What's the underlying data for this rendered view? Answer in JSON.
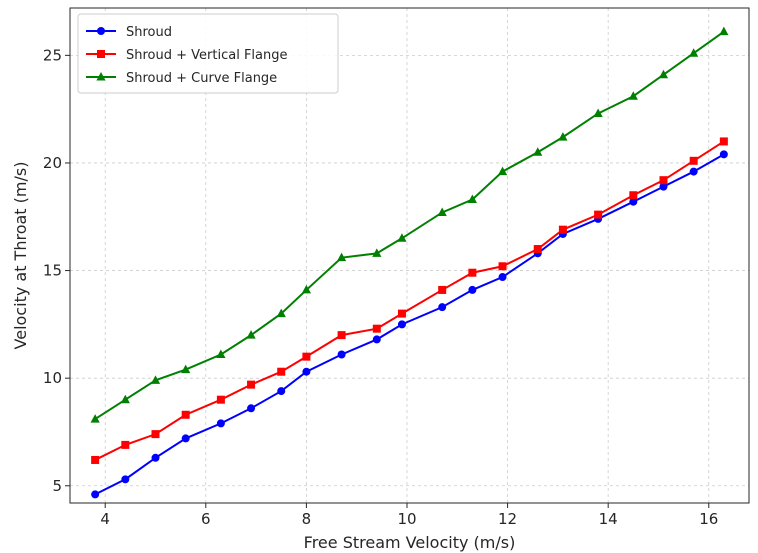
{
  "chart_data": {
    "type": "line",
    "xlabel": "Free Stream Velocity (m/s)",
    "ylabel": "Velocity at Throat (m/s)",
    "xlim": [
      3.3,
      16.8
    ],
    "ylim": [
      4.2,
      27.2
    ],
    "xticks": [
      4,
      6,
      8,
      10,
      12,
      14,
      16
    ],
    "yticks": [
      5,
      10,
      15,
      20,
      25
    ],
    "grid": true,
    "legend_position": "top-left",
    "x": [
      3.8,
      4.4,
      5.0,
      5.6,
      6.3,
      6.9,
      7.5,
      8.0,
      8.7,
      9.4,
      9.9,
      10.7,
      11.3,
      11.9,
      12.6,
      13.1,
      13.8,
      14.5,
      15.1,
      15.7,
      16.3
    ],
    "series": [
      {
        "name": "Shroud",
        "color": "#0000ff",
        "marker": "circle",
        "values": [
          4.6,
          5.3,
          6.3,
          7.2,
          7.9,
          8.6,
          9.4,
          10.3,
          11.1,
          11.8,
          12.5,
          13.3,
          14.1,
          14.7,
          15.8,
          16.7,
          17.4,
          18.2,
          18.9,
          19.6,
          20.4
        ]
      },
      {
        "name": "Shroud + Vertical Flange",
        "color": "#ff0000",
        "marker": "square",
        "values": [
          6.2,
          6.9,
          7.4,
          8.3,
          9.0,
          9.7,
          10.3,
          11.0,
          12.0,
          12.3,
          13.0,
          14.1,
          14.9,
          15.2,
          16.0,
          16.9,
          17.6,
          18.5,
          19.2,
          20.1,
          21.0
        ]
      },
      {
        "name": "Shroud + Curve Flange",
        "color": "#008000",
        "marker": "triangle",
        "values": [
          8.1,
          9.0,
          9.9,
          10.4,
          11.1,
          12.0,
          13.0,
          14.1,
          15.6,
          15.8,
          16.5,
          17.7,
          18.3,
          19.6,
          20.5,
          21.2,
          22.3,
          23.1,
          24.1,
          25.1,
          26.1
        ]
      }
    ]
  }
}
